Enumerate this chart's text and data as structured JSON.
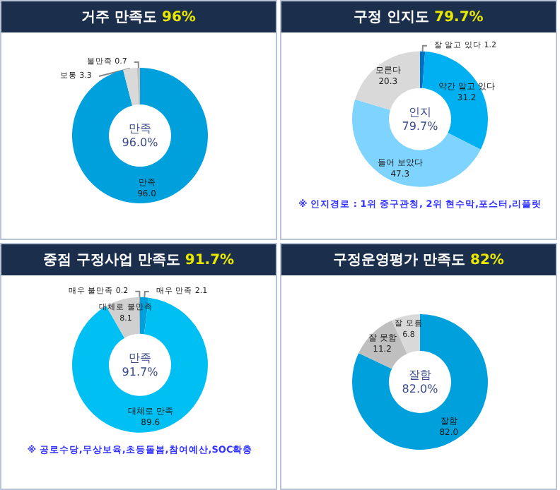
{
  "chart_data": [
    {
      "type": "donut",
      "title": "거주 만족도 96%",
      "categories": [
        "만족",
        "보통",
        "불만족"
      ],
      "values": [
        96.0,
        3.3,
        0.7
      ],
      "value_labels": [
        "96.0",
        "3.3",
        "0.7"
      ],
      "colors": [
        "#00a0dc",
        "#d9d9d9",
        "#bfbfbf"
      ],
      "annotations": [
        "만족\n96.0%"
      ]
    },
    {
      "type": "donut",
      "title": "구정 인지도 79.7%",
      "categories": [
        "잘 알고 있다",
        "약간 알고 있다",
        "들어 보았다",
        "모른다"
      ],
      "values": [
        1.2,
        31.2,
        47.3,
        20.3
      ],
      "value_labels": [
        "1.2",
        "31.2",
        "47.3",
        "20.3"
      ],
      "colors": [
        "#0070c0",
        "#00b0f0",
        "#7fd4ff",
        "#d9d9d9"
      ],
      "annotations": [
        "인지\n79.7%",
        "※ 인지경로 : 1위 중구관청, 2위 현수막,포스터,리플릿"
      ]
    },
    {
      "type": "donut",
      "title": "중점 구정사업 만족도 91.7%",
      "categories": [
        "매우 만족",
        "대체로 만족",
        "대체로 불만족",
        "매우 불만족"
      ],
      "values": [
        2.1,
        89.6,
        8.1,
        0.2
      ],
      "value_labels": [
        "2.1",
        "89.6",
        "8.1",
        "0.2"
      ],
      "colors": [
        "#00a0dc",
        "#00bff3",
        "#d0d0d0",
        "#a6a6a6"
      ],
      "annotations": [
        "만족\n91.7%",
        "※ 공로수당,무상보육,초등돌봄,참여예산,SOC확충"
      ]
    },
    {
      "type": "donut",
      "title": "구정운영평가 만족도 82%",
      "categories": [
        "잘함",
        "잘 못함",
        "잘 모름"
      ],
      "values": [
        82.0,
        11.2,
        6.8
      ],
      "value_labels": [
        "82.0",
        "11.2",
        "6.8"
      ],
      "colors": [
        "#00a0dc",
        "#bfbfbf",
        "#d9d9d9"
      ],
      "annotations": [
        "잘함\n82.0%"
      ]
    }
  ]
}
